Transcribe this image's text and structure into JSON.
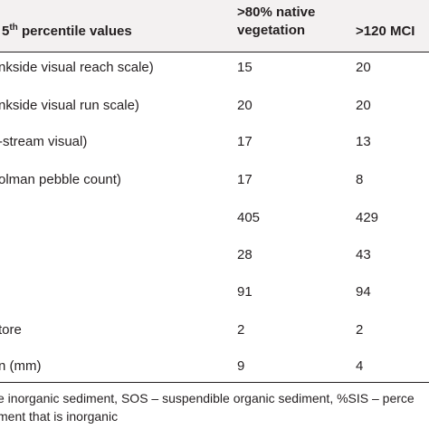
{
  "table": {
    "header": {
      "col0_main": "5",
      "col0_sup": "th",
      "col0_rest": " percentile values",
      "col1_line1": ">80% native",
      "col1_line2": "vegetation",
      "col2": ">120 MCI"
    },
    "rows": [
      {
        "label": "nkside visual reach scale)",
        "v1": "15",
        "v2": "20"
      },
      {
        "label": "nkside visual run scale)",
        "v1": "20",
        "v2": "20"
      },
      {
        "label": "-stream visual)",
        "v1": "17",
        "v2": "13"
      },
      {
        "label": "olman pebble count)",
        "v1": "17",
        "v2": "8"
      },
      {
        "label": "",
        "v1": "405",
        "v2": "429"
      },
      {
        "label": "",
        "v1": "28",
        "v2": "43"
      },
      {
        "label": "",
        "v1": "91",
        "v2": "94"
      },
      {
        "label": "tore",
        "v1": "2",
        "v2": "2"
      },
      {
        "label": "n (mm)",
        "v1": "9",
        "v2": "4"
      }
    ]
  },
  "footnote": {
    "line1": "e inorganic sediment, SOS – suspendible organic sediment, %SIS – perce",
    "line2": "ment that is inorganic"
  }
}
